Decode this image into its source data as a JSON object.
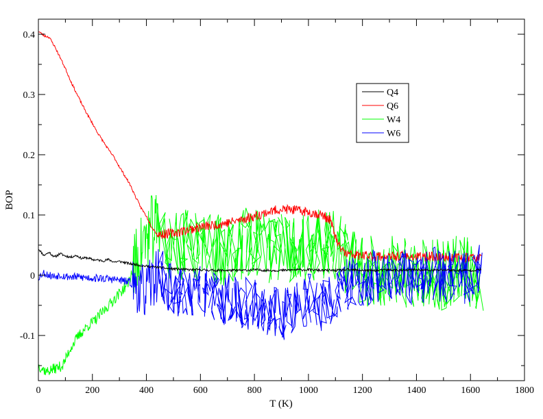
{
  "chart_data": {
    "type": "line",
    "xlabel": "T (K)",
    "ylabel": "BOP",
    "xlim": [
      0,
      1800
    ],
    "ylim": [
      -0.175,
      0.425
    ],
    "x_ticks": [
      0,
      200,
      400,
      600,
      800,
      1000,
      1200,
      1400,
      1600,
      1800
    ],
    "x_tick_labels": [
      "0",
      "200",
      "400",
      "600",
      "800",
      "1000",
      "1200",
      "1400",
      "1600",
      "1800"
    ],
    "y_ticks": [
      -0.1,
      0,
      0.1,
      0.2,
      0.3,
      0.4
    ],
    "y_tick_labels": [
      "-0.1",
      "0",
      "0.1",
      "0.2",
      "0.3",
      "0.4"
    ],
    "grid": false,
    "legend_position": "top-right",
    "series": [
      {
        "name": "Q4",
        "color": "#000000",
        "points": [
          [
            0,
            0.044
          ],
          [
            20,
            0.033
          ],
          [
            40,
            0.038
          ],
          [
            60,
            0.03
          ],
          [
            80,
            0.036
          ],
          [
            100,
            0.032
          ],
          [
            120,
            0.03
          ],
          [
            140,
            0.033
          ],
          [
            160,
            0.028
          ],
          [
            180,
            0.029
          ],
          [
            200,
            0.026
          ],
          [
            220,
            0.025
          ],
          [
            240,
            0.024
          ],
          [
            260,
            0.026
          ],
          [
            280,
            0.022
          ],
          [
            300,
            0.023
          ],
          [
            320,
            0.021
          ],
          [
            340,
            0.019
          ],
          [
            360,
            0.018
          ],
          [
            380,
            0.016
          ],
          [
            400,
            0.015
          ],
          [
            420,
            0.014
          ],
          [
            450,
            0.013
          ],
          [
            480,
            0.011
          ],
          [
            520,
            0.01
          ],
          [
            560,
            0.009
          ],
          [
            600,
            0.009
          ],
          [
            650,
            0.008
          ],
          [
            700,
            0.008
          ],
          [
            750,
            0.008
          ],
          [
            800,
            0.009
          ],
          [
            850,
            0.008
          ],
          [
            900,
            0.008
          ],
          [
            950,
            0.009
          ],
          [
            1000,
            0.009
          ],
          [
            1050,
            0.008
          ],
          [
            1100,
            0.008
          ],
          [
            1150,
            0.009
          ],
          [
            1200,
            0.008
          ],
          [
            1250,
            0.008
          ],
          [
            1300,
            0.009
          ],
          [
            1350,
            0.008
          ],
          [
            1400,
            0.009
          ],
          [
            1450,
            0.008
          ],
          [
            1500,
            0.009
          ],
          [
            1550,
            0.008
          ],
          [
            1600,
            0.008
          ],
          [
            1640,
            0.009
          ]
        ],
        "noise": 0.002
      },
      {
        "name": "Q6",
        "color": "#ff0000",
        "points": [
          [
            0,
            0.405
          ],
          [
            20,
            0.398
          ],
          [
            40,
            0.395
          ],
          [
            60,
            0.38
          ],
          [
            80,
            0.362
          ],
          [
            100,
            0.343
          ],
          [
            120,
            0.322
          ],
          [
            140,
            0.303
          ],
          [
            160,
            0.285
          ],
          [
            180,
            0.268
          ],
          [
            200,
            0.252
          ],
          [
            220,
            0.236
          ],
          [
            240,
            0.222
          ],
          [
            260,
            0.208
          ],
          [
            280,
            0.196
          ],
          [
            300,
            0.18
          ],
          [
            320,
            0.165
          ],
          [
            340,
            0.15
          ],
          [
            360,
            0.13
          ],
          [
            380,
            0.112
          ],
          [
            400,
            0.098
          ],
          [
            420,
            0.08
          ],
          [
            440,
            0.068
          ],
          [
            460,
            0.068
          ],
          [
            500,
            0.07
          ],
          [
            550,
            0.075
          ],
          [
            600,
            0.08
          ],
          [
            650,
            0.083
          ],
          [
            700,
            0.087
          ],
          [
            750,
            0.092
          ],
          [
            800,
            0.098
          ],
          [
            850,
            0.105
          ],
          [
            900,
            0.11
          ],
          [
            950,
            0.108
          ],
          [
            1000,
            0.105
          ],
          [
            1050,
            0.1
          ],
          [
            1080,
            0.092
          ],
          [
            1110,
            0.05
          ],
          [
            1140,
            0.035
          ],
          [
            1200,
            0.032
          ],
          [
            1250,
            0.032
          ],
          [
            1300,
            0.03
          ],
          [
            1350,
            0.032
          ],
          [
            1400,
            0.03
          ],
          [
            1450,
            0.031
          ],
          [
            1500,
            0.03
          ],
          [
            1550,
            0.029
          ],
          [
            1600,
            0.03
          ],
          [
            1640,
            0.028
          ]
        ],
        "noise": 0.008
      },
      {
        "name": "W4",
        "color": "#00ff00",
        "points": [
          [
            0,
            -0.15
          ],
          [
            30,
            -0.16
          ],
          [
            60,
            -0.155
          ],
          [
            90,
            -0.15
          ],
          [
            120,
            -0.12
          ],
          [
            150,
            -0.1
          ],
          [
            180,
            -0.085
          ],
          [
            210,
            -0.075
          ],
          [
            240,
            -0.06
          ],
          [
            270,
            -0.045
          ],
          [
            300,
            -0.03
          ],
          [
            330,
            -0.015
          ],
          [
            360,
            0.02
          ],
          [
            390,
            0.055
          ],
          [
            420,
            0.075
          ],
          [
            450,
            0.08
          ],
          [
            500,
            0.045
          ],
          [
            550,
            0.05
          ],
          [
            600,
            0.045
          ],
          [
            650,
            0.045
          ],
          [
            700,
            0.04
          ],
          [
            750,
            0.05
          ],
          [
            800,
            0.06
          ],
          [
            850,
            0.04
          ],
          [
            900,
            0.05
          ],
          [
            950,
            0.045
          ],
          [
            1000,
            0.05
          ],
          [
            1050,
            0.055
          ],
          [
            1100,
            0.045
          ],
          [
            1150,
            0.02
          ],
          [
            1200,
            0.01
          ],
          [
            1250,
            0.005
          ],
          [
            1300,
            0.01
          ],
          [
            1350,
            0.0
          ],
          [
            1400,
            0.01
          ],
          [
            1450,
            0.005
          ],
          [
            1500,
            0.0
          ],
          [
            1550,
            0.01
          ],
          [
            1600,
            0.005
          ],
          [
            1640,
            0.0
          ]
        ],
        "noise": 0.06
      },
      {
        "name": "W6",
        "color": "#0000ff",
        "points": [
          [
            0,
            -0.003
          ],
          [
            20,
            0.004
          ],
          [
            40,
            0.0
          ],
          [
            60,
            -0.002
          ],
          [
            80,
            0.001
          ],
          [
            100,
            -0.002
          ],
          [
            140,
            -0.003
          ],
          [
            180,
            -0.004
          ],
          [
            220,
            -0.005
          ],
          [
            260,
            -0.006
          ],
          [
            300,
            -0.008
          ],
          [
            340,
            -0.012
          ],
          [
            370,
            -0.022
          ],
          [
            390,
            -0.028
          ],
          [
            410,
            -0.02
          ],
          [
            430,
            -0.005
          ],
          [
            450,
            0.005
          ],
          [
            470,
            -0.015
          ],
          [
            500,
            -0.025
          ],
          [
            550,
            -0.03
          ],
          [
            600,
            -0.03
          ],
          [
            650,
            -0.035
          ],
          [
            700,
            -0.04
          ],
          [
            750,
            -0.045
          ],
          [
            800,
            -0.05
          ],
          [
            850,
            -0.06
          ],
          [
            900,
            -0.065
          ],
          [
            950,
            -0.05
          ],
          [
            1000,
            -0.04
          ],
          [
            1050,
            -0.05
          ],
          [
            1100,
            -0.045
          ],
          [
            1150,
            -0.01
          ],
          [
            1200,
            -0.02
          ],
          [
            1250,
            0.0
          ],
          [
            1300,
            -0.01
          ],
          [
            1350,
            0.0
          ],
          [
            1400,
            -0.01
          ],
          [
            1450,
            0.005
          ],
          [
            1500,
            -0.005
          ],
          [
            1550,
            0.0
          ],
          [
            1600,
            -0.005
          ],
          [
            1640,
            0.01
          ]
        ],
        "noise": 0.045
      }
    ]
  }
}
